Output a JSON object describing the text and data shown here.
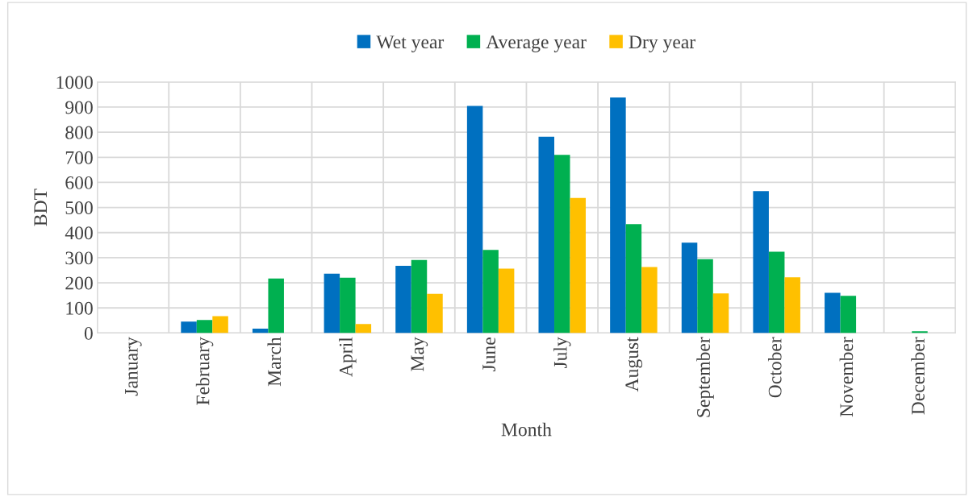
{
  "chart_data": {
    "type": "bar",
    "xlabel": "Month",
    "ylabel": "BDT",
    "categories": [
      "January",
      "February",
      "March",
      "April",
      "May",
      "June",
      "July",
      "August",
      "September",
      "October",
      "November",
      "December"
    ],
    "series": [
      {
        "name": "Wet year",
        "color": "#0070c0",
        "values": [
          0,
          45,
          17,
          236,
          268,
          905,
          782,
          938,
          360,
          565,
          160,
          0
        ]
      },
      {
        "name": "Average year",
        "color": "#00b050",
        "values": [
          0,
          52,
          217,
          220,
          291,
          331,
          710,
          434,
          294,
          324,
          148,
          7
        ]
      },
      {
        "name": "Dry year",
        "color": "#ffc000",
        "values": [
          0,
          67,
          0,
          36,
          156,
          256,
          538,
          263,
          158,
          222,
          null,
          null
        ]
      }
    ],
    "ylim": [
      0,
      1000
    ],
    "yticks": [
      0,
      100,
      200,
      300,
      400,
      500,
      600,
      700,
      800,
      900,
      1000
    ],
    "grid": true,
    "legend": "top"
  }
}
